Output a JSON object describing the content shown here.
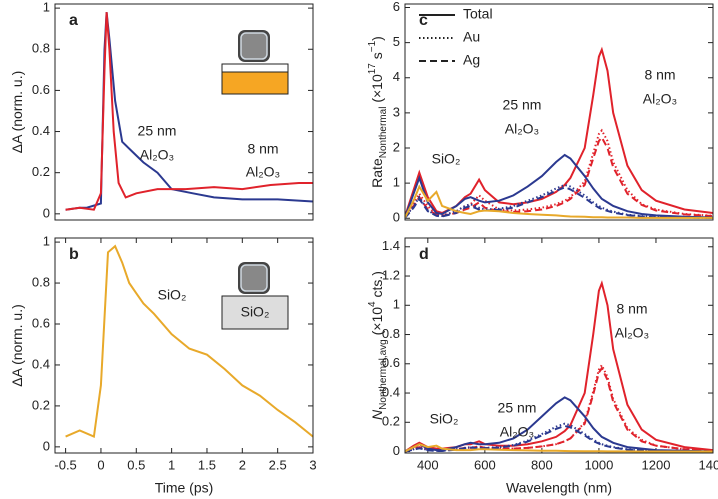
{
  "chart_data": [
    {
      "type": "line",
      "panel_label": "a",
      "xlim": [
        -0.65,
        3
      ],
      "ylim": [
        -0.03,
        1.02
      ],
      "yticks": [
        0,
        0.2,
        0.4,
        0.6,
        0.8,
        1
      ],
      "ylabel": [
        {
          "text": "ΔA (norm. u.)"
        }
      ],
      "series": [
        {
          "color": "#2b3990",
          "x": [
            -0.5,
            -0.3,
            -0.2,
            0,
            0.05,
            0.08,
            0.12,
            0.2,
            0.3,
            0.45,
            0.6,
            0.8,
            1.0,
            1.3,
            1.6,
            2.0,
            2.5,
            3
          ],
          "values": [
            0.02,
            0.03,
            0.03,
            0.05,
            0.8,
            0.98,
            0.85,
            0.55,
            0.35,
            0.3,
            0.25,
            0.2,
            0.12,
            0.1,
            0.08,
            0.07,
            0.07,
            0.06
          ]
        },
        {
          "color": "#e0222b",
          "x": [
            -0.5,
            -0.3,
            -0.1,
            0,
            0.05,
            0.08,
            0.12,
            0.18,
            0.25,
            0.35,
            0.5,
            0.8,
            1.2,
            1.6,
            2.0,
            2.4,
            2.8,
            3
          ],
          "values": [
            0.02,
            0.03,
            0.02,
            0.1,
            0.7,
            0.98,
            0.8,
            0.4,
            0.15,
            0.08,
            0.1,
            0.12,
            0.12,
            0.13,
            0.12,
            0.14,
            0.15,
            0.15
          ]
        }
      ],
      "annotations": [
        {
          "text": "25 nm",
          "color": "#2b3990"
        },
        {
          "text": "Al₂O₃",
          "color": "#2b3990"
        },
        {
          "text": "8 nm",
          "color": "#e0222b"
        },
        {
          "text": "Al₂O₃",
          "color": "#e0222b"
        }
      ]
    },
    {
      "type": "line",
      "panel_label": "b",
      "xlim": [
        -0.65,
        3
      ],
      "ylim": [
        -0.03,
        1.02
      ],
      "yticks": [
        0,
        0.2,
        0.4,
        0.6,
        0.8,
        1
      ],
      "xticks": [
        -0.5,
        0,
        0.5,
        1,
        1.5,
        2,
        2.5,
        3
      ],
      "xlabel": "Time (ps)",
      "ylabel": [
        {
          "text": "ΔA (norm. u.)"
        }
      ],
      "inset_label": "SiO₂",
      "series": [
        {
          "color": "#e8a92a",
          "x": [
            -0.5,
            -0.3,
            -0.1,
            0,
            0.1,
            0.2,
            0.3,
            0.4,
            0.5,
            0.6,
            0.75,
            1.0,
            1.25,
            1.5,
            1.75,
            2.0,
            2.25,
            2.5,
            2.75,
            3
          ],
          "values": [
            0.05,
            0.08,
            0.05,
            0.3,
            0.95,
            0.98,
            0.9,
            0.8,
            0.75,
            0.7,
            0.65,
            0.55,
            0.48,
            0.45,
            0.38,
            0.3,
            0.25,
            0.18,
            0.12,
            0.05
          ]
        }
      ],
      "annotations": [
        {
          "text": "SiO₂",
          "color": "#e8a92a"
        }
      ]
    },
    {
      "type": "line",
      "panel_label": "c",
      "xlim": [
        320,
        1400
      ],
      "ylim": [
        -0.05,
        6.1
      ],
      "yticks": [
        0,
        1,
        2,
        3,
        4,
        5,
        6
      ],
      "ylabel": [
        {
          "text": "Rate"
        },
        {
          "text": "Nonthermal",
          "script": "sub"
        },
        {
          "text": " (×10"
        },
        {
          "text": "17",
          "script": "sup"
        },
        {
          "text": " s"
        },
        {
          "text": "−1",
          "script": "sup"
        },
        {
          "text": ")"
        }
      ],
      "legend": [
        {
          "label": "Total",
          "line_style": "solid"
        },
        {
          "label": "Au",
          "line_style": "dotted"
        },
        {
          "label": "Ag",
          "line_style": "dashed"
        }
      ],
      "x": [
        320,
        350,
        370,
        400,
        430,
        450,
        500,
        530,
        550,
        580,
        600,
        650,
        700,
        750,
        800,
        850,
        880,
        900,
        950,
        980,
        1000,
        1010,
        1030,
        1050,
        1100,
        1150,
        1200,
        1300,
        1400
      ],
      "series": [
        {
          "color": "#e0222b",
          "line_style": "solid",
          "values": [
            0.05,
            0.8,
            1.3,
            0.6,
            0.2,
            0.15,
            0.35,
            0.6,
            0.7,
            1.1,
            0.8,
            0.45,
            0.4,
            0.45,
            0.55,
            0.75,
            0.95,
            1.15,
            2.0,
            3.5,
            4.6,
            4.8,
            4.2,
            3.0,
            1.5,
            0.8,
            0.5,
            0.25,
            0.15
          ]
        },
        {
          "color": "#e0222b",
          "line_style": "dotted",
          "values": [
            0.02,
            0.4,
            0.7,
            0.35,
            0.1,
            0.08,
            0.2,
            0.35,
            0.4,
            0.65,
            0.5,
            0.25,
            0.22,
            0.25,
            0.3,
            0.4,
            0.5,
            0.6,
            1.05,
            1.85,
            2.4,
            2.5,
            2.2,
            1.6,
            0.8,
            0.4,
            0.25,
            0.12,
            0.07
          ]
        },
        {
          "color": "#e0222b",
          "line_style": "dashed",
          "values": [
            0.02,
            0.35,
            0.6,
            0.25,
            0.1,
            0.07,
            0.15,
            0.25,
            0.3,
            0.45,
            0.3,
            0.2,
            0.18,
            0.2,
            0.25,
            0.35,
            0.45,
            0.55,
            0.95,
            1.7,
            2.2,
            2.3,
            2.0,
            1.45,
            0.7,
            0.38,
            0.22,
            0.11,
            0.06
          ]
        },
        {
          "color": "#2b3990",
          "line_style": "solid",
          "values": [
            0.03,
            0.7,
            1.15,
            0.45,
            0.15,
            0.12,
            0.35,
            0.55,
            0.6,
            0.5,
            0.45,
            0.5,
            0.65,
            0.9,
            1.2,
            1.6,
            1.8,
            1.7,
            1.2,
            0.85,
            0.65,
            0.55,
            0.45,
            0.35,
            0.2,
            0.12,
            0.08,
            0.04,
            0.02
          ]
        },
        {
          "color": "#2b3990",
          "line_style": "dotted",
          "values": [
            0.01,
            0.35,
            0.6,
            0.22,
            0.08,
            0.06,
            0.2,
            0.35,
            0.4,
            0.3,
            0.25,
            0.27,
            0.35,
            0.5,
            0.65,
            0.85,
            0.95,
            0.9,
            0.65,
            0.45,
            0.35,
            0.3,
            0.24,
            0.19,
            0.1,
            0.06,
            0.04,
            0.02,
            0.01
          ]
        },
        {
          "color": "#2b3990",
          "line_style": "dashed",
          "values": [
            0.01,
            0.3,
            0.55,
            0.2,
            0.07,
            0.05,
            0.15,
            0.3,
            0.35,
            0.25,
            0.22,
            0.24,
            0.3,
            0.45,
            0.6,
            0.78,
            0.88,
            0.82,
            0.58,
            0.4,
            0.3,
            0.26,
            0.21,
            0.16,
            0.09,
            0.05,
            0.03,
            0.02,
            0.01
          ]
        },
        {
          "color": "#e8a92a",
          "line_style": "solid",
          "values": [
            0.02,
            0.5,
            0.9,
            0.5,
            0.75,
            0.35,
            0.2,
            0.15,
            0.12,
            0.2,
            0.22,
            0.2,
            0.15,
            0.12,
            0.1,
            0.08,
            0.06,
            0.05,
            0.04,
            0.03,
            0.03,
            0.03,
            0.02,
            0.02,
            0.02,
            0.01,
            0.01,
            0.01,
            0.01
          ]
        }
      ],
      "annotations": [
        {
          "text": "8 nm",
          "color": "#e0222b"
        },
        {
          "text": "Al₂O₃",
          "color": "#e0222b"
        },
        {
          "text": "25 nm",
          "color": "#2b3990"
        },
        {
          "text": "Al₂O₃",
          "color": "#2b3990"
        },
        {
          "text": "SiO₂",
          "color": "#e8a92a"
        }
      ]
    },
    {
      "type": "line",
      "panel_label": "d",
      "xlim": [
        320,
        1400
      ],
      "ylim": [
        -0.01,
        1.46
      ],
      "yticks": [
        0,
        0.2,
        0.4,
        0.6,
        0.8,
        1,
        1.2,
        1.4
      ],
      "xticks": [
        400,
        600,
        800,
        1000,
        1200,
        1400
      ],
      "xlabel": "Wavelength (nm)",
      "ylabel": [
        {
          "text": "N",
          "style": "italic"
        },
        {
          "text": "Nonthermal,avg",
          "script": "sub"
        },
        {
          "text": " (×10"
        },
        {
          "text": "4",
          "script": "sup"
        },
        {
          "text": " cts.)"
        }
      ],
      "x": [
        320,
        350,
        370,
        400,
        430,
        450,
        500,
        530,
        550,
        580,
        600,
        650,
        700,
        750,
        800,
        850,
        880,
        900,
        950,
        980,
        1000,
        1010,
        1030,
        1050,
        1100,
        1150,
        1200,
        1300,
        1400
      ],
      "series": [
        {
          "color": "#e0222b",
          "line_style": "solid",
          "values": [
            0,
            0.04,
            0.06,
            0.03,
            0.02,
            0.02,
            0.03,
            0.05,
            0.05,
            0.07,
            0.05,
            0.04,
            0.04,
            0.05,
            0.07,
            0.1,
            0.14,
            0.18,
            0.4,
            0.8,
            1.1,
            1.15,
            1.0,
            0.7,
            0.32,
            0.15,
            0.08,
            0.03,
            0.01
          ]
        },
        {
          "color": "#e0222b",
          "line_style": "dotted",
          "values": [
            0,
            0.02,
            0.03,
            0.015,
            0.01,
            0.01,
            0.015,
            0.025,
            0.025,
            0.035,
            0.025,
            0.02,
            0.02,
            0.025,
            0.035,
            0.05,
            0.07,
            0.09,
            0.2,
            0.41,
            0.56,
            0.59,
            0.51,
            0.36,
            0.16,
            0.08,
            0.04,
            0.015,
            0.005
          ]
        },
        {
          "color": "#e0222b",
          "line_style": "dashed",
          "values": [
            0,
            0.02,
            0.03,
            0.015,
            0.01,
            0.01,
            0.015,
            0.025,
            0.025,
            0.035,
            0.025,
            0.02,
            0.02,
            0.025,
            0.035,
            0.05,
            0.07,
            0.09,
            0.19,
            0.39,
            0.54,
            0.57,
            0.49,
            0.34,
            0.15,
            0.07,
            0.04,
            0.015,
            0.005
          ]
        },
        {
          "color": "#2b3990",
          "line_style": "solid",
          "values": [
            0,
            0.03,
            0.05,
            0.02,
            0.01,
            0.01,
            0.03,
            0.05,
            0.06,
            0.05,
            0.05,
            0.06,
            0.09,
            0.15,
            0.24,
            0.33,
            0.37,
            0.35,
            0.24,
            0.16,
            0.12,
            0.1,
            0.08,
            0.06,
            0.03,
            0.02,
            0.01,
            0.005,
            0
          ]
        },
        {
          "color": "#2b3990",
          "line_style": "dotted",
          "values": [
            0,
            0.015,
            0.025,
            0.01,
            0.005,
            0.005,
            0.015,
            0.025,
            0.03,
            0.025,
            0.025,
            0.03,
            0.045,
            0.075,
            0.12,
            0.17,
            0.19,
            0.18,
            0.12,
            0.08,
            0.06,
            0.05,
            0.04,
            0.03,
            0.015,
            0.01,
            0.005,
            0.002,
            0
          ]
        },
        {
          "color": "#2b3990",
          "line_style": "dashed",
          "values": [
            0,
            0.013,
            0.022,
            0.009,
            0.004,
            0.004,
            0.013,
            0.022,
            0.027,
            0.022,
            0.022,
            0.027,
            0.04,
            0.068,
            0.11,
            0.155,
            0.175,
            0.165,
            0.11,
            0.072,
            0.054,
            0.045,
            0.036,
            0.027,
            0.013,
            0.009,
            0.004,
            0.002,
            0
          ]
        },
        {
          "color": "#e8a92a",
          "line_style": "solid",
          "values": [
            0,
            0.03,
            0.05,
            0.03,
            0.04,
            0.02,
            0.01,
            0.01,
            0.01,
            0.015,
            0.015,
            0.012,
            0.01,
            0.008,
            0.006,
            0.005,
            0.004,
            0.003,
            0.002,
            0.002,
            0.002,
            0.002,
            0.001,
            0.001,
            0.001,
            0,
            0,
            0,
            0
          ]
        }
      ],
      "annotations": [
        {
          "text": "8 nm",
          "color": "#e0222b"
        },
        {
          "text": "Al₂O₃",
          "color": "#e0222b"
        },
        {
          "text": "25 nm",
          "color": "#2b3990"
        },
        {
          "text": "Al₂O₃",
          "color": "#2b3990"
        },
        {
          "text": "SiO₂",
          "color": "#e8a92a"
        }
      ]
    }
  ]
}
